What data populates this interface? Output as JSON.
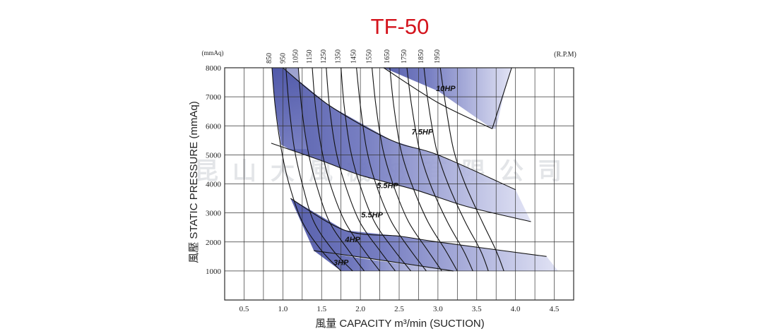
{
  "chart_data": {
    "type": "line",
    "title": "TF-50",
    "xlabel": "風量  CAPACITY  m³/min (SUCTION)",
    "ylabel": "風壓  STATIC  PRESSURE  (mmAq)",
    "y_unit": "(mmAq)",
    "rpm_unit": "(R.P.M)",
    "xlim": [
      0.25,
      4.75
    ],
    "ylim": [
      0,
      8000
    ],
    "x_ticks": [
      0.5,
      1.0,
      1.5,
      2.0,
      2.5,
      3.0,
      3.5,
      4.0,
      4.5
    ],
    "x_tick_labels": [
      "0.5",
      "1.0",
      "1.5",
      "2.0",
      "2.5",
      "3.0",
      "3.5",
      "4.0",
      "4.5"
    ],
    "y_ticks": [
      1000,
      2000,
      3000,
      4000,
      5000,
      6000,
      7000,
      8000
    ],
    "y_tick_labels": [
      "1000",
      "2000",
      "3000",
      "4000",
      "5000",
      "6000",
      "7000",
      "8000"
    ],
    "grid": true,
    "watermark": "昆山大風機械有限公司",
    "rpm_curves": [
      {
        "rpm": "850",
        "points": [
          [
            0.86,
            8000
          ],
          [
            0.9,
            6700
          ],
          [
            0.98,
            5200
          ],
          [
            1.08,
            4000
          ],
          [
            1.25,
            2700
          ],
          [
            1.5,
            1700
          ],
          [
            1.75,
            1000
          ]
        ]
      },
      {
        "rpm": "950",
        "points": [
          [
            1.04,
            8000
          ],
          [
            1.08,
            6700
          ],
          [
            1.15,
            5200
          ],
          [
            1.25,
            4000
          ],
          [
            1.4,
            2700
          ],
          [
            1.65,
            1700
          ],
          [
            1.9,
            1000
          ]
        ]
      },
      {
        "rpm": "1050",
        "points": [
          [
            1.2,
            8000
          ],
          [
            1.24,
            6700
          ],
          [
            1.32,
            5200
          ],
          [
            1.43,
            4000
          ],
          [
            1.6,
            2700
          ],
          [
            1.85,
            1700
          ],
          [
            2.05,
            1000
          ]
        ]
      },
      {
        "rpm": "1150",
        "points": [
          [
            1.38,
            8000
          ],
          [
            1.42,
            6700
          ],
          [
            1.5,
            5200
          ],
          [
            1.61,
            4000
          ],
          [
            1.8,
            2700
          ],
          [
            2.05,
            1700
          ],
          [
            2.25,
            1000
          ]
        ]
      },
      {
        "rpm": "1250",
        "points": [
          [
            1.56,
            8000
          ],
          [
            1.6,
            6700
          ],
          [
            1.68,
            5200
          ],
          [
            1.8,
            4000
          ],
          [
            1.99,
            2700
          ],
          [
            2.25,
            1700
          ],
          [
            2.45,
            1000
          ]
        ]
      },
      {
        "rpm": "1350",
        "points": [
          [
            1.75,
            8000
          ],
          [
            1.79,
            6700
          ],
          [
            1.87,
            5200
          ],
          [
            1.99,
            4000
          ],
          [
            2.18,
            2700
          ],
          [
            2.44,
            1700
          ],
          [
            2.65,
            1000
          ]
        ]
      },
      {
        "rpm": "1450",
        "points": [
          [
            1.95,
            8000
          ],
          [
            2.0,
            6700
          ],
          [
            2.08,
            5200
          ],
          [
            2.2,
            4000
          ],
          [
            2.4,
            2700
          ],
          [
            2.65,
            1700
          ],
          [
            2.85,
            1000
          ]
        ]
      },
      {
        "rpm": "1550",
        "points": [
          [
            2.15,
            8000
          ],
          [
            2.2,
            6700
          ],
          [
            2.29,
            5200
          ],
          [
            2.42,
            4000
          ],
          [
            2.62,
            2700
          ],
          [
            2.87,
            1700
          ],
          [
            3.05,
            1000
          ]
        ]
      },
      {
        "rpm": "1650",
        "points": [
          [
            2.38,
            8000
          ],
          [
            2.43,
            6700
          ],
          [
            2.52,
            5200
          ],
          [
            2.66,
            4000
          ],
          [
            2.87,
            2700
          ],
          [
            3.1,
            1700
          ],
          [
            3.25,
            1000
          ]
        ]
      },
      {
        "rpm": "1750",
        "points": [
          [
            2.6,
            8000
          ],
          [
            2.66,
            6700
          ],
          [
            2.76,
            5200
          ],
          [
            2.9,
            4000
          ],
          [
            3.12,
            2700
          ],
          [
            3.33,
            1700
          ],
          [
            3.45,
            1000
          ]
        ]
      },
      {
        "rpm": "1850",
        "points": [
          [
            2.82,
            8000
          ],
          [
            2.88,
            6700
          ],
          [
            2.98,
            5200
          ],
          [
            3.13,
            4000
          ],
          [
            3.35,
            2700
          ],
          [
            3.55,
            1700
          ],
          [
            3.65,
            1000
          ]
        ]
      },
      {
        "rpm": "1950",
        "points": [
          [
            3.03,
            8000
          ],
          [
            3.1,
            6700
          ],
          [
            3.2,
            5200
          ],
          [
            3.35,
            4000
          ],
          [
            3.57,
            2700
          ],
          [
            3.75,
            1700
          ],
          [
            3.85,
            1000
          ]
        ]
      }
    ],
    "hp_bands": [
      {
        "hp": "10HP",
        "upper": [
          [
            2.3,
            8000
          ],
          [
            3.0,
            7200
          ],
          [
            3.7,
            5900
          ]
        ],
        "lower": [
          [
            3.7,
            5900
          ],
          [
            3.0,
            6800
          ],
          [
            2.3,
            8000
          ]
        ],
        "label_at": [
          3.1,
          7200
        ]
      },
      {
        "hp": "7.5HP",
        "upper": [
          [
            1.0,
            8000
          ],
          [
            1.6,
            6700
          ],
          [
            2.4,
            5500
          ],
          [
            3.0,
            5000
          ],
          [
            4.0,
            3800
          ]
        ],
        "lower": [
          [
            4.2,
            2700
          ],
          [
            3.4,
            3200
          ],
          [
            2.7,
            3800
          ],
          [
            2.0,
            4300
          ],
          [
            1.5,
            4800
          ],
          [
            0.85,
            5400
          ]
        ],
        "label_at": [
          2.8,
          5700
        ]
      },
      {
        "hp": "5.5HP",
        "upper": [
          [
            1.0,
            8000
          ],
          [
            1.6,
            6700
          ],
          [
            2.4,
            5500
          ],
          [
            3.0,
            5000
          ],
          [
            4.0,
            3800
          ]
        ],
        "lower": [
          [
            4.2,
            2700
          ],
          [
            3.4,
            3200
          ],
          [
            2.7,
            3800
          ],
          [
            2.0,
            4300
          ],
          [
            1.5,
            4800
          ],
          [
            0.85,
            5400
          ]
        ],
        "label_at": [
          2.35,
          3850
        ]
      },
      {
        "hp": "5.5HP",
        "upper": [
          [
            1.1,
            3500
          ],
          [
            1.8,
            2400
          ],
          [
            2.5,
            1850
          ],
          [
            3.0,
            1650
          ]
        ],
        "lower": [],
        "label_at": [
          2.15,
          2850
        ]
      },
      {
        "hp": "4HP",
        "upper": [
          [
            1.1,
            3500
          ],
          [
            1.8,
            2400
          ],
          [
            2.5,
            2200
          ],
          [
            3.0,
            2000
          ],
          [
            4.4,
            1500
          ]
        ],
        "lower": [
          [
            4.55,
            1000
          ],
          [
            3.2,
            1050
          ],
          [
            2.2,
            1400
          ],
          [
            1.4,
            1700
          ]
        ],
        "label_at": [
          1.9,
          2000
        ]
      },
      {
        "hp": "3HP",
        "upper": [
          [
            1.4,
            1700
          ],
          [
            2.1,
            1400
          ],
          [
            3.2,
            1000
          ]
        ],
        "lower": [],
        "label_at": [
          1.75,
          1200
        ]
      }
    ]
  },
  "colors": {
    "band_dark": "#4c55a8",
    "band_light": "#e2e4f6",
    "title": "#d4141d",
    "grid": "#333333"
  }
}
